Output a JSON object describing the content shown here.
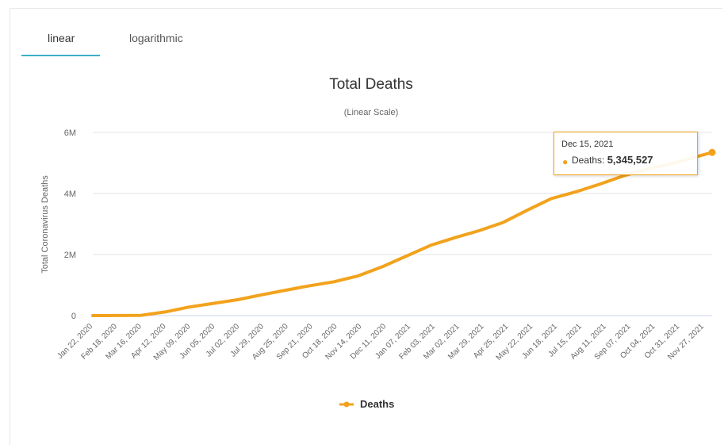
{
  "tabs": [
    {
      "label": "linear",
      "active": true
    },
    {
      "label": "logarithmic",
      "active": false
    }
  ],
  "colors": {
    "series": "#f2a21c",
    "tab_accent": "#3bb0c9",
    "grid": "#e6e6e6"
  },
  "chart_data": {
    "type": "line",
    "title": "Total Deaths",
    "subtitle": "(Linear Scale)",
    "ylabel": "Total Coronavirus Deaths",
    "xlabel": "",
    "ylim": [
      0,
      6000000
    ],
    "yticks": [
      {
        "value": 0,
        "label": "0"
      },
      {
        "value": 2000000,
        "label": "2M"
      },
      {
        "value": 4000000,
        "label": "4M"
      },
      {
        "value": 6000000,
        "label": "6M"
      }
    ],
    "x_start": "2020-01-22",
    "x_end": "2021-12-15",
    "xticks": [
      "Jan 22, 2020",
      "Feb 18, 2020",
      "Mar 16, 2020",
      "Apr 12, 2020",
      "May 09, 2020",
      "Jun 05, 2020",
      "Jul 02, 2020",
      "Jul 29, 2020",
      "Aug 25, 2020",
      "Sep 21, 2020",
      "Oct 18, 2020",
      "Nov 14, 2020",
      "Dec 11, 2020",
      "Jan 07, 2021",
      "Feb 03, 2021",
      "Mar 02, 2021",
      "Mar 29, 2021",
      "Apr 25, 2021",
      "May 22, 2021",
      "Jun 18, 2021",
      "Jul 15, 2021",
      "Aug 11, 2021",
      "Sep 07, 2021",
      "Oct 04, 2021",
      "Oct 31, 2021",
      "Nov 27, 2021"
    ],
    "legend_position": "bottom-center",
    "grid": true,
    "series": [
      {
        "name": "Deaths",
        "color": "#f2a21c",
        "x": [
          "2020-01-22",
          "2020-02-18",
          "2020-03-16",
          "2020-04-12",
          "2020-05-09",
          "2020-06-05",
          "2020-07-02",
          "2020-07-29",
          "2020-08-25",
          "2020-09-21",
          "2020-10-18",
          "2020-11-14",
          "2020-12-11",
          "2021-01-07",
          "2021-02-03",
          "2021-03-02",
          "2021-03-29",
          "2021-04-25",
          "2021-05-22",
          "2021-06-18",
          "2021-07-15",
          "2021-08-11",
          "2021-09-07",
          "2021-10-04",
          "2021-10-31",
          "2021-11-27",
          "2021-12-15"
        ],
        "values": [
          0,
          2000,
          8000,
          120000,
          280000,
          400000,
          520000,
          680000,
          830000,
          980000,
          1110000,
          1300000,
          1600000,
          1950000,
          2300000,
          2550000,
          2780000,
          3050000,
          3450000,
          3830000,
          4050000,
          4300000,
          4580000,
          4800000,
          4980000,
          5200000,
          5345527
        ]
      }
    ],
    "tooltip": {
      "date": "Dec 15, 2021",
      "label": "Deaths:",
      "value": "5,345,527"
    }
  }
}
